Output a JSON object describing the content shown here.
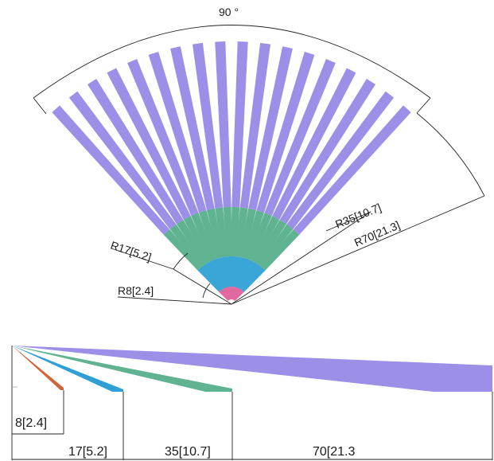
{
  "fan_view": {
    "angle_label": "90 °",
    "radius_labels": {
      "r8": "R8[2.4]",
      "r17": "R17[5.2]",
      "r35": "R35[10.7]",
      "r70": "R70[21.3]"
    },
    "blade_count": 18,
    "colors": {
      "outer": "#9b8fe8",
      "mid": "#5fb391",
      "inner": "#3aa6d8",
      "core": "#e06aa0"
    }
  },
  "profile_view": {
    "labels": {
      "d8": "8[2.4]",
      "d17": "17[5.2]",
      "d35": "35[10.7]",
      "d70": "70[21.3"
    },
    "colors": {
      "d8": "#d2643a",
      "d17": "#2f9fd6",
      "d35": "#5fb391",
      "d70": "#9b8fe8"
    }
  }
}
